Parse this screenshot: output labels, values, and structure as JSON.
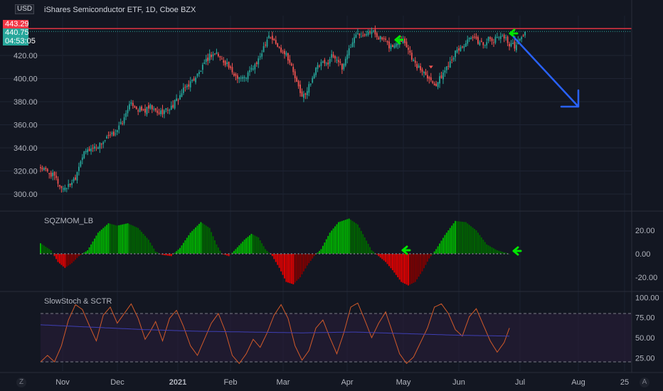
{
  "header": {
    "currency": "USD",
    "title": "iShares Semiconductor ETF, 1D, Cboe BZX"
  },
  "price_tags": {
    "resistance": "443.29",
    "last": "440.75",
    "countdown": "04:53:05"
  },
  "corner_buttons": {
    "left": "Z",
    "right": "A"
  },
  "colors": {
    "background": "#131722",
    "up": "#26a69a",
    "down": "#ef5350",
    "resistance_line": "#f23645",
    "arrow_green": "#00e600",
    "arrow_blue": "#2962ff",
    "sqz_strong_up": "#00b300",
    "sqz_weak_up": "#006400",
    "sqz_strong_down": "#e00000",
    "sqz_weak_down": "#800000",
    "stoch": "#d25a2a",
    "sctr": "#3f3fb4"
  },
  "chart_data": [
    {
      "type": "candlestick",
      "title": "iShares Semiconductor ETF, 1D, Cboe BZX",
      "x_ticks": [
        "Nov",
        "Dec",
        "2021",
        "Feb",
        "Mar",
        "Apr",
        "May",
        "Jun",
        "Jul",
        "Aug",
        "25"
      ],
      "y_ticks": [
        "300.00",
        "320.00",
        "340.00",
        "360.00",
        "380.00",
        "400.00",
        "420.00"
      ],
      "ylim": [
        288,
        450
      ],
      "resistance": 443.29,
      "last_price": 440.75,
      "close_path": [
        [
          0,
          323
        ],
        [
          8,
          315
        ],
        [
          12,
          305
        ],
        [
          16,
          307
        ],
        [
          20,
          315
        ],
        [
          23,
          330
        ],
        [
          26,
          337
        ],
        [
          30,
          340
        ],
        [
          34,
          343
        ],
        [
          38,
          348
        ],
        [
          42,
          352
        ],
        [
          45,
          358
        ],
        [
          48,
          365
        ],
        [
          50,
          375
        ],
        [
          53,
          378
        ],
        [
          56,
          373
        ],
        [
          60,
          372
        ],
        [
          63,
          375
        ],
        [
          67,
          370
        ],
        [
          71,
          372
        ],
        [
          75,
          375
        ],
        [
          79,
          383
        ],
        [
          83,
          392
        ],
        [
          87,
          398
        ],
        [
          91,
          405
        ],
        [
          94,
          412
        ],
        [
          97,
          420
        ],
        [
          101,
          422
        ],
        [
          104,
          416
        ],
        [
          107,
          413
        ],
        [
          110,
          404
        ],
        [
          113,
          402
        ],
        [
          117,
          400
        ],
        [
          121,
          408
        ],
        [
          125,
          415
        ],
        [
          128,
          428
        ],
        [
          131,
          438
        ],
        [
          134,
          432
        ],
        [
          137,
          426
        ],
        [
          141,
          422
        ],
        [
          144,
          410
        ],
        [
          147,
          396
        ],
        [
          149,
          387
        ],
        [
          152,
          385
        ],
        [
          155,
          398
        ],
        [
          158,
          408
        ],
        [
          161,
          413
        ],
        [
          164,
          412
        ],
        [
          167,
          420
        ],
        [
          170,
          418
        ],
        [
          173,
          408
        ],
        [
          176,
          422
        ],
        [
          179,
          432
        ],
        [
          182,
          440
        ],
        [
          185,
          438
        ],
        [
          188,
          442
        ],
        [
          191,
          440
        ],
        [
          194,
          436
        ],
        [
          197,
          433
        ],
        [
          200,
          428
        ],
        [
          203,
          428
        ],
        [
          206,
          435
        ],
        [
          209,
          432
        ],
        [
          212,
          422
        ],
        [
          215,
          412
        ],
        [
          218,
          408
        ],
        [
          221,
          405
        ],
        [
          224,
          398
        ],
        [
          227,
          395
        ],
        [
          230,
          402
        ],
        [
          233,
          410
        ],
        [
          236,
          418
        ],
        [
          239,
          424
        ],
        [
          242,
          428
        ],
        [
          245,
          432
        ],
        [
          248,
          435
        ],
        [
          251,
          432
        ],
        [
          254,
          430
        ],
        [
          257,
          434
        ],
        [
          260,
          432
        ],
        [
          263,
          438
        ],
        [
          266,
          436
        ],
        [
          269,
          430
        ],
        [
          272,
          428
        ],
        [
          275,
          434
        ],
        [
          278,
          440
        ]
      ]
    },
    {
      "type": "bar",
      "title": "SQZMOM_LB",
      "y_ticks": [
        "20.00",
        "0.00",
        "-20.00"
      ],
      "ylim": [
        -28,
        28
      ],
      "wave_anchors": [
        [
          0,
          9
        ],
        [
          6,
          3
        ],
        [
          10,
          -7
        ],
        [
          14,
          -12
        ],
        [
          18,
          -8
        ],
        [
          22,
          -2
        ],
        [
          27,
          3
        ],
        [
          33,
          18
        ],
        [
          39,
          26
        ],
        [
          44,
          24
        ],
        [
          50,
          26
        ],
        [
          56,
          22
        ],
        [
          62,
          12
        ],
        [
          66,
          2
        ],
        [
          70,
          -1
        ],
        [
          75,
          -2
        ],
        [
          80,
          5
        ],
        [
          86,
          18
        ],
        [
          92,
          27
        ],
        [
          97,
          22
        ],
        [
          101,
          8
        ],
        [
          104,
          0
        ],
        [
          108,
          -2
        ],
        [
          112,
          4
        ],
        [
          117,
          12
        ],
        [
          121,
          17
        ],
        [
          125,
          14
        ],
        [
          129,
          4
        ],
        [
          133,
          -2
        ],
        [
          137,
          -12
        ],
        [
          141,
          -24
        ],
        [
          145,
          -26
        ],
        [
          149,
          -20
        ],
        [
          153,
          -10
        ],
        [
          157,
          -2
        ],
        [
          161,
          4
        ],
        [
          166,
          18
        ],
        [
          171,
          27
        ],
        [
          177,
          30
        ],
        [
          182,
          25
        ],
        [
          186,
          14
        ],
        [
          190,
          3
        ],
        [
          194,
          -2
        ],
        [
          198,
          -7
        ],
        [
          202,
          -14
        ],
        [
          207,
          -24
        ],
        [
          211,
          -27
        ],
        [
          215,
          -24
        ],
        [
          219,
          -15
        ],
        [
          223,
          -4
        ],
        [
          227,
          4
        ],
        [
          232,
          16
        ],
        [
          238,
          28
        ],
        [
          244,
          27
        ],
        [
          250,
          20
        ],
        [
          256,
          8
        ],
        [
          262,
          3
        ],
        [
          269,
          0
        ]
      ]
    },
    {
      "type": "line",
      "title": "SlowStoch & SCTR",
      "y_ticks": [
        "100.00",
        "75.00",
        "50.00",
        "25.00"
      ],
      "ylim": [
        12,
        102
      ],
      "bands": [
        20,
        80
      ],
      "series": [
        {
          "values": [
            [
              0,
              20
            ],
            [
              4,
              28
            ],
            [
              8,
              20
            ],
            [
              12,
              40
            ],
            [
              16,
              72
            ],
            [
              20,
              91
            ],
            [
              24,
              85
            ],
            [
              28,
              65
            ],
            [
              32,
              46
            ],
            [
              36,
              78
            ],
            [
              40,
              88
            ],
            [
              44,
              68
            ],
            [
              48,
              80
            ],
            [
              52,
              92
            ],
            [
              56,
              74
            ],
            [
              60,
              48
            ],
            [
              63,
              58
            ],
            [
              66,
              70
            ],
            [
              70,
              46
            ],
            [
              74,
              74
            ],
            [
              78,
              84
            ],
            [
              82,
              64
            ],
            [
              86,
              40
            ],
            [
              90,
              28
            ],
            [
              94,
              48
            ],
            [
              98,
              68
            ],
            [
              102,
              80
            ],
            [
              106,
              58
            ],
            [
              110,
              28
            ],
            [
              114,
              18
            ],
            [
              118,
              30
            ],
            [
              122,
              48
            ],
            [
              126,
              38
            ],
            [
              130,
              56
            ],
            [
              134,
              78
            ],
            [
              138,
              91
            ],
            [
              142,
              74
            ],
            [
              146,
              40
            ],
            [
              150,
              22
            ],
            [
              154,
              34
            ],
            [
              158,
              62
            ],
            [
              162,
              72
            ],
            [
              166,
              50
            ],
            [
              170,
              30
            ],
            [
              174,
              56
            ],
            [
              178,
              88
            ],
            [
              182,
              93
            ],
            [
              186,
              72
            ],
            [
              190,
              50
            ],
            [
              194,
              68
            ],
            [
              198,
              82
            ],
            [
              202,
              56
            ],
            [
              206,
              30
            ],
            [
              210,
              18
            ],
            [
              214,
              26
            ],
            [
              218,
              44
            ],
            [
              222,
              62
            ],
            [
              226,
              88
            ],
            [
              230,
              92
            ],
            [
              234,
              80
            ],
            [
              238,
              60
            ],
            [
              242,
              52
            ],
            [
              246,
              76
            ],
            [
              250,
              86
            ],
            [
              254,
              66
            ],
            [
              258,
              46
            ],
            [
              262,
              32
            ],
            [
              266,
              44
            ],
            [
              269,
              62
            ]
          ]
        },
        {
          "values": [
            [
              0,
              66
            ],
            [
              30,
              63
            ],
            [
              60,
              60
            ],
            [
              90,
              58
            ],
            [
              120,
              57
            ],
            [
              150,
              56
            ],
            [
              180,
              57
            ],
            [
              210,
              55
            ],
            [
              240,
              53
            ],
            [
              269,
              52
            ]
          ]
        }
      ]
    }
  ]
}
